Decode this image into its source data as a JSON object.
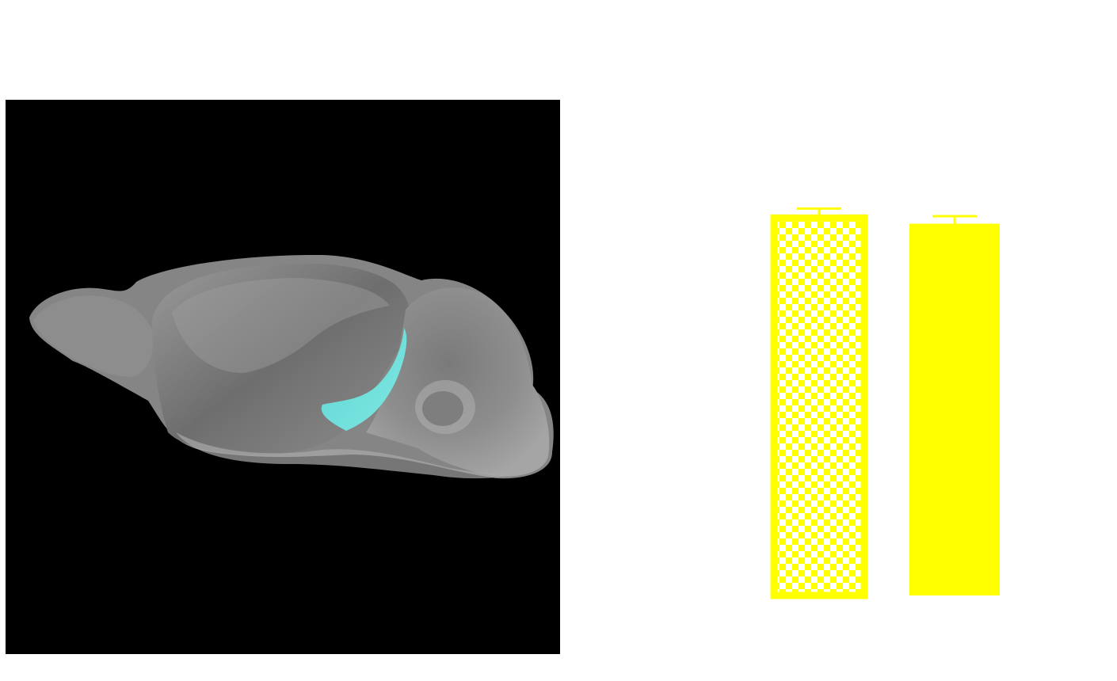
{
  "colors": {
    "background": "#ffffff",
    "panel_background": "#000000",
    "brain_tissue": "#8a8a8a",
    "brain_highlight": "#6ee0dc",
    "bar_fill": "#ffff00",
    "bar_pattern_light": "#ffffff"
  },
  "brain_image": {
    "highlight_region_icon": "cyan-region-shape"
  },
  "chart_data": {
    "type": "bar",
    "categories": [
      "",
      ""
    ],
    "series": [
      {
        "values": [
          100,
          98.5
        ],
        "errors": [
          2.5,
          2.0
        ],
        "patterns": [
          "checkered",
          "solid"
        ]
      }
    ],
    "ylim": [
      0,
      120
    ],
    "grid": false,
    "legend": "none",
    "title": "",
    "xlabel": "",
    "ylabel": ""
  }
}
